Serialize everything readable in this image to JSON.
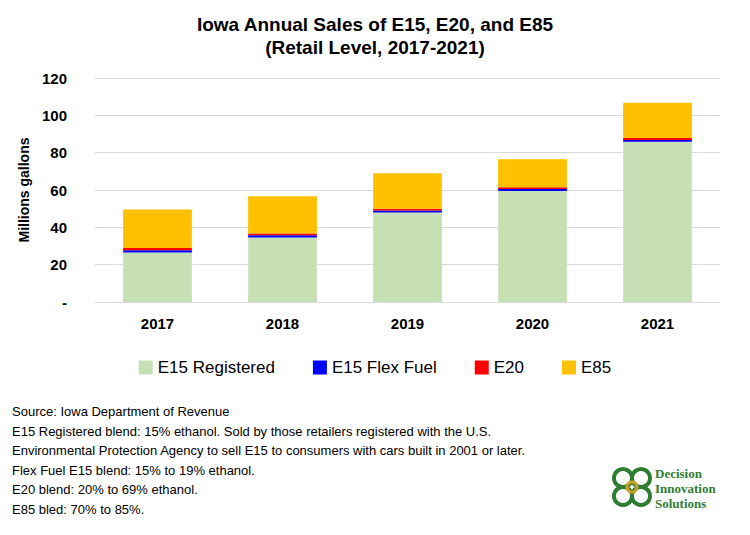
{
  "chart_data": {
    "type": "bar",
    "title": "Iowa Annual Sales of E15, E20, and E85",
    "subtitle": "(Retail Level, 2017-2021)",
    "y_label": "Millions gallons",
    "categories": [
      "2017",
      "2018",
      "2019",
      "2020",
      "2021"
    ],
    "series": [
      {
        "name": "E15 Registered",
        "color": "#c6e0b4",
        "values": [
          26.5,
          34.5,
          48,
          59.5,
          85.8
        ]
      },
      {
        "name": "E15 Flex Fuel",
        "color": "#0000ff",
        "values": [
          1.2,
          1.2,
          1.0,
          1.0,
          1.0
        ]
      },
      {
        "name": "E20",
        "color": "#ff0000",
        "values": [
          1.2,
          1.0,
          1.0,
          1.0,
          1.0
        ]
      },
      {
        "name": "E85",
        "color": "#ffc000",
        "values": [
          20.6,
          20.0,
          19.0,
          15.0,
          19.0
        ]
      }
    ],
    "stacked": true,
    "ylim": [
      0,
      120
    ],
    "yticks": [
      {
        "value": 0,
        "label": "-"
      },
      20,
      40,
      60,
      80,
      100,
      120
    ],
    "grid": true,
    "legend": "bottom",
    "annotations": [
      "Source: Iowa Department of Revenue",
      "E15 Registered blend: 15% ethanol. Sold by those retailers registered with the U.S.",
      "Environmental Protection Agency to sell E15 to consumers with cars built in 2001 or later.",
      "Flex Fuel E15 blend: 15% to 19% ethanol.",
      "E20 blend: 20% to 69% ethanol.",
      "E85 bled: 70% to 85%."
    ],
    "credit": [
      "Decision",
      "Innovation",
      "Solutions"
    ]
  }
}
